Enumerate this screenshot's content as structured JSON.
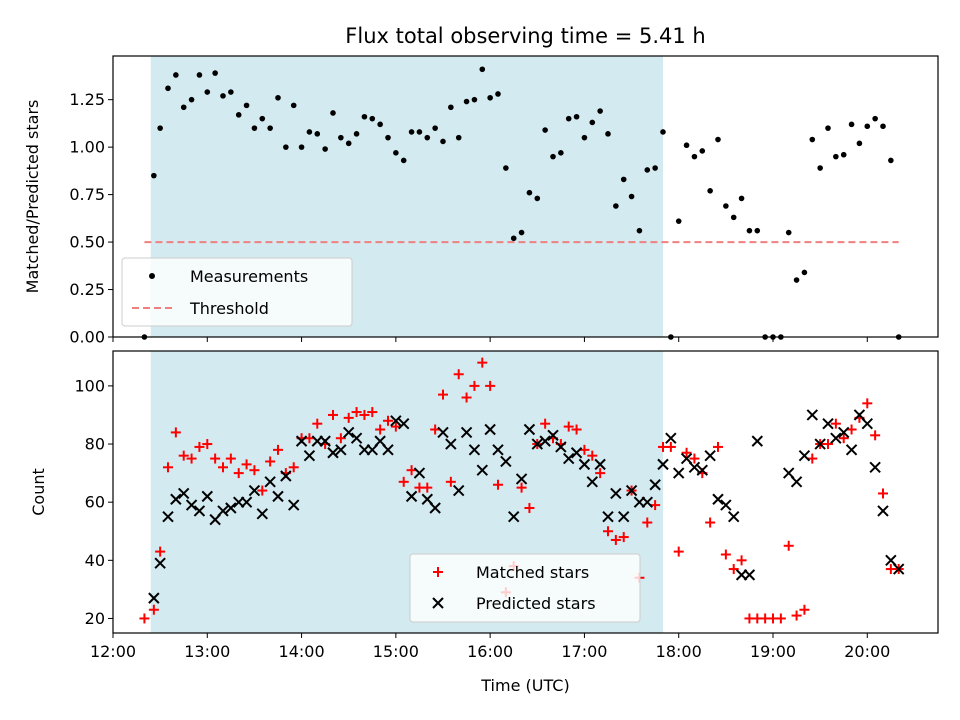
{
  "chart_data": [
    {
      "type": "scatter",
      "title": "Flux total observing time = 5.41 h",
      "xlabel": "",
      "ylabel": "Matched/Predicted stars",
      "ylim": [
        0,
        1.48
      ],
      "xlim": [
        "12:00",
        "20:45"
      ],
      "yticks": [
        "0.00",
        "0.25",
        "0.50",
        "0.75",
        "1.00",
        "1.25"
      ],
      "highlight_span": {
        "start": "12:24",
        "end": "17:50",
        "color": "#d3eaf0"
      },
      "series": [
        {
          "name": "Measurements",
          "marker": "dot",
          "color": "#000000",
          "x": [
            "12:20",
            "12:26",
            "12:30",
            "12:35",
            "12:40",
            "12:45",
            "12:50",
            "12:55",
            "13:00",
            "13:05",
            "13:10",
            "13:15",
            "13:20",
            "13:25",
            "13:30",
            "13:35",
            "13:40",
            "13:45",
            "13:50",
            "13:55",
            "14:00",
            "14:05",
            "14:10",
            "14:15",
            "14:20",
            "14:25",
            "14:30",
            "14:35",
            "14:40",
            "14:45",
            "14:50",
            "14:55",
            "15:00",
            "15:05",
            "15:10",
            "15:15",
            "15:20",
            "15:25",
            "15:30",
            "15:35",
            "15:40",
            "15:45",
            "15:50",
            "15:55",
            "16:00",
            "16:05",
            "16:10",
            "16:15",
            "16:20",
            "16:25",
            "16:30",
            "16:35",
            "16:40",
            "16:45",
            "16:50",
            "16:55",
            "17:00",
            "17:05",
            "17:10",
            "17:15",
            "17:20",
            "17:25",
            "17:30",
            "17:35",
            "17:40",
            "17:45",
            "17:50",
            "17:55",
            "18:00",
            "18:05",
            "18:10",
            "18:15",
            "18:20",
            "18:25",
            "18:30",
            "18:35",
            "18:40",
            "18:45",
            "18:50",
            "18:55",
            "19:00",
            "19:05",
            "19:10",
            "19:15",
            "19:20",
            "19:25",
            "19:30",
            "19:35",
            "19:40",
            "19:45",
            "19:50",
            "19:55",
            "20:00",
            "20:05",
            "20:10",
            "20:15",
            "20:20"
          ],
          "values": [
            0.0,
            0.85,
            1.1,
            1.31,
            1.38,
            1.21,
            1.25,
            1.38,
            1.29,
            1.39,
            1.27,
            1.29,
            1.17,
            1.22,
            1.1,
            1.15,
            1.1,
            1.26,
            1.0,
            1.22,
            1.0,
            1.08,
            1.07,
            0.99,
            1.18,
            1.05,
            1.02,
            1.07,
            1.16,
            1.15,
            1.12,
            1.05,
            0.97,
            0.93,
            1.08,
            1.08,
            1.05,
            1.1,
            1.03,
            1.21,
            1.05,
            1.24,
            1.25,
            1.41,
            1.26,
            1.28,
            0.89,
            0.52,
            0.55,
            0.76,
            0.73,
            1.09,
            0.95,
            0.97,
            1.15,
            1.16,
            1.05,
            1.13,
            1.19,
            1.07,
            0.69,
            0.83,
            0.74,
            0.56,
            0.88,
            0.89,
            1.08,
            0.0,
            0.61,
            1.01,
            0.95,
            0.98,
            0.77,
            1.04,
            0.69,
            0.63,
            0.73,
            0.56,
            0.56,
            0.0,
            0.0,
            0.0,
            0.55,
            0.3,
            0.34,
            1.04,
            0.89,
            1.1,
            0.95,
            0.96,
            1.12,
            1.02,
            1.11,
            1.15,
            1.11,
            0.93,
            0.0
          ]
        },
        {
          "name": "Threshold",
          "marker": "dashed-line",
          "color": "#f08080",
          "x": [
            "12:20",
            "20:20"
          ],
          "values": [
            0.5,
            0.5
          ]
        }
      ],
      "legend": {
        "placement": "lower-left"
      }
    },
    {
      "type": "scatter",
      "title": "",
      "xlabel": "Time (UTC)",
      "ylabel": "Count",
      "ylim": [
        15,
        112
      ],
      "xlim": [
        "12:00",
        "20:45"
      ],
      "yticks": [
        "20",
        "40",
        "60",
        "80",
        "100"
      ],
      "xticks": [
        "12:00",
        "13:00",
        "14:00",
        "15:00",
        "16:00",
        "17:00",
        "18:00",
        "19:00",
        "20:00"
      ],
      "highlight_span": {
        "start": "12:24",
        "end": "17:50",
        "color": "#d3eaf0"
      },
      "series": [
        {
          "name": "Matched stars",
          "marker": "plus",
          "color": "#ff0000",
          "x": [
            "12:20",
            "12:26",
            "12:30",
            "12:35",
            "12:40",
            "12:45",
            "12:50",
            "12:55",
            "13:00",
            "13:05",
            "13:10",
            "13:15",
            "13:20",
            "13:25",
            "13:30",
            "13:35",
            "13:40",
            "13:45",
            "13:50",
            "13:55",
            "14:00",
            "14:05",
            "14:10",
            "14:15",
            "14:20",
            "14:25",
            "14:30",
            "14:35",
            "14:40",
            "14:45",
            "14:50",
            "14:55",
            "15:00",
            "15:05",
            "15:10",
            "15:15",
            "15:20",
            "15:25",
            "15:30",
            "15:35",
            "15:40",
            "15:45",
            "15:50",
            "15:55",
            "16:00",
            "16:05",
            "16:10",
            "16:15",
            "16:20",
            "16:25",
            "16:30",
            "16:35",
            "16:40",
            "16:45",
            "16:50",
            "16:55",
            "17:00",
            "17:05",
            "17:10",
            "17:15",
            "17:20",
            "17:25",
            "17:30",
            "17:35",
            "17:40",
            "17:45",
            "17:50",
            "17:55",
            "18:00",
            "18:05",
            "18:10",
            "18:15",
            "18:20",
            "18:25",
            "18:30",
            "18:35",
            "18:40",
            "18:45",
            "18:50",
            "18:55",
            "19:00",
            "19:05",
            "19:10",
            "19:15",
            "19:20",
            "19:25",
            "19:30",
            "19:35",
            "19:40",
            "19:45",
            "19:50",
            "19:55",
            "20:00",
            "20:05",
            "20:10",
            "20:15",
            "20:20"
          ],
          "values": [
            20,
            23,
            43,
            72,
            84,
            76,
            75,
            79,
            80,
            75,
            72,
            75,
            70,
            73,
            71,
            64,
            74,
            78,
            70,
            72,
            82,
            82,
            87,
            80,
            90,
            82,
            89,
            91,
            90,
            91,
            85,
            88,
            86,
            67,
            71,
            65,
            65,
            85,
            97,
            67,
            104,
            96,
            100,
            108,
            100,
            66,
            29,
            38,
            65,
            58,
            80,
            87,
            82,
            80,
            86,
            85,
            78,
            76,
            70,
            50,
            47,
            48,
            64,
            34,
            53,
            59,
            79,
            79,
            43,
            77,
            75,
            70,
            53,
            79,
            42,
            37,
            40,
            20,
            20,
            20,
            20,
            20,
            45,
            21,
            23,
            75,
            80,
            80,
            87,
            82,
            85,
            89,
            94,
            83,
            63,
            37,
            37
          ]
        },
        {
          "name": "Predicted stars",
          "marker": "x",
          "color": "#000000",
          "x": [
            "12:26",
            "12:30",
            "12:35",
            "12:40",
            "12:45",
            "12:50",
            "12:55",
            "13:00",
            "13:05",
            "13:10",
            "13:15",
            "13:20",
            "13:25",
            "13:30",
            "13:35",
            "13:40",
            "13:45",
            "13:50",
            "13:55",
            "14:00",
            "14:05",
            "14:10",
            "14:15",
            "14:20",
            "14:25",
            "14:30",
            "14:35",
            "14:40",
            "14:45",
            "14:50",
            "14:55",
            "15:00",
            "15:05",
            "15:10",
            "15:15",
            "15:20",
            "15:25",
            "15:30",
            "15:35",
            "15:40",
            "15:45",
            "15:50",
            "15:55",
            "16:00",
            "16:05",
            "16:10",
            "16:15",
            "16:20",
            "16:25",
            "16:30",
            "16:35",
            "16:40",
            "16:45",
            "16:50",
            "16:55",
            "17:00",
            "17:05",
            "17:10",
            "17:15",
            "17:20",
            "17:25",
            "17:30",
            "17:35",
            "17:40",
            "17:45",
            "17:50",
            "17:55",
            "18:00",
            "18:05",
            "18:10",
            "18:15",
            "18:20",
            "18:25",
            "18:30",
            "18:35",
            "18:40",
            "18:45",
            "18:50",
            "19:10",
            "19:15",
            "19:20",
            "19:25",
            "19:30",
            "19:35",
            "19:40",
            "19:45",
            "19:50",
            "19:55",
            "20:00",
            "20:05",
            "20:10",
            "20:15",
            "20:20"
          ],
          "values": [
            27,
            39,
            55,
            61,
            63,
            59,
            57,
            62,
            54,
            57,
            58,
            60,
            60,
            64,
            56,
            67,
            62,
            69,
            59,
            81,
            76,
            81,
            81,
            77,
            78,
            84,
            82,
            78,
            78,
            81,
            78,
            88,
            87,
            62,
            70,
            61,
            58,
            84,
            80,
            64,
            84,
            78,
            71,
            85,
            78,
            74,
            55,
            68,
            85,
            80,
            81,
            83,
            79,
            75,
            77,
            73,
            67,
            73,
            55,
            63,
            55,
            64,
            60,
            60,
            66,
            73,
            82,
            70,
            75,
            72,
            71,
            76,
            61,
            59,
            55,
            35,
            35,
            81,
            70,
            67,
            76,
            90,
            80,
            87,
            82,
            84,
            78,
            90,
            87,
            72,
            57,
            40,
            37
          ]
        }
      ],
      "legend": {
        "placement": "lower-center"
      }
    }
  ]
}
